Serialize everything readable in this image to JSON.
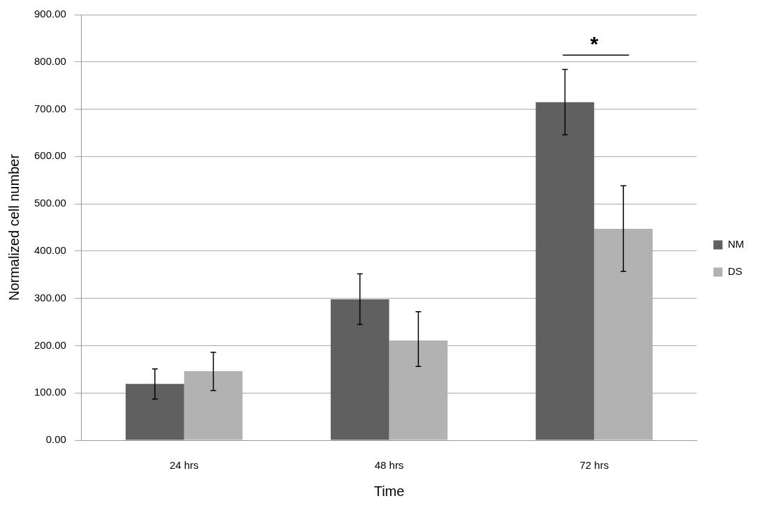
{
  "chart_data": {
    "type": "bar",
    "xlabel": "Time",
    "ylabel": "Normalized cell number",
    "categories": [
      "24 hrs",
      "48 hrs",
      "72 hrs"
    ],
    "series": [
      {
        "name": "NM",
        "color": "#606060",
        "values": [
          119,
          298,
          715
        ],
        "errors": [
          [
            87,
            151
          ],
          [
            245,
            352
          ],
          [
            646,
            784
          ]
        ]
      },
      {
        "name": "DS",
        "color": "#b2b2b2",
        "values": [
          146,
          211,
          447
        ],
        "errors": [
          [
            105,
            186
          ],
          [
            156,
            272
          ],
          [
            357,
            538
          ]
        ]
      }
    ],
    "ylim": [
      0,
      900
    ],
    "yticks": [
      {
        "value": 0,
        "label": "0.00"
      },
      {
        "value": 100,
        "label": "100.00"
      },
      {
        "value": 200,
        "label": "200.00"
      },
      {
        "value": 300,
        "label": "300.00"
      },
      {
        "value": 400,
        "label": "400.00"
      },
      {
        "value": 500,
        "label": "500.00"
      },
      {
        "value": 600,
        "label": "600.00"
      },
      {
        "value": 700,
        "label": "700.00"
      },
      {
        "value": 800,
        "label": "800.00"
      },
      {
        "value": 900,
        "label": "900.00"
      }
    ],
    "grid": "y",
    "legend": "right",
    "annotations": [
      "*"
    ]
  }
}
